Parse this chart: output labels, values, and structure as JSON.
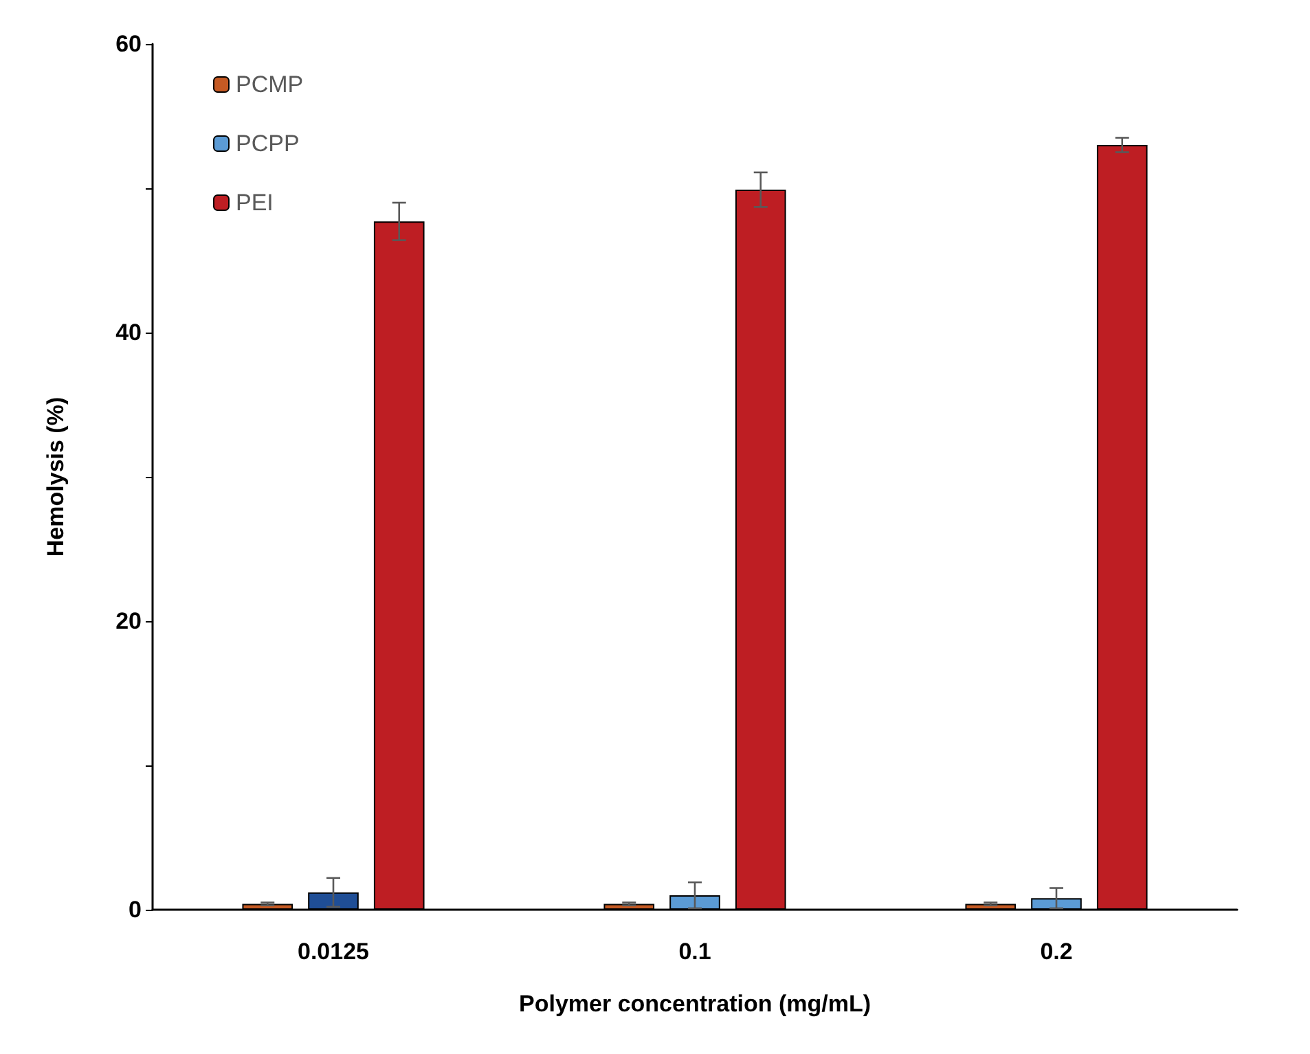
{
  "chart_data": {
    "type": "bar",
    "xlabel": "Polymer concentration (mg/mL)",
    "ylabel": "Hemolysis (%)",
    "categories": [
      "0.0125",
      "0.1",
      "0.2"
    ],
    "series": [
      {
        "name": "PCMP",
        "color": "#c55a24",
        "values": [
          0.4,
          0.4,
          0.4
        ],
        "errors": [
          0.1,
          0.1,
          0.1
        ]
      },
      {
        "name": "PCPP",
        "color": "#5b9bd5",
        "colors": [
          "#1f4e96",
          "#5b9bd5",
          "#5b9bd5"
        ],
        "values": [
          1.2,
          1.0,
          0.8
        ],
        "errors": [
          1.0,
          0.9,
          0.7
        ]
      },
      {
        "name": "PEI",
        "color": "#be1e23",
        "values": [
          47.7,
          49.9,
          53.0
        ],
        "errors": [
          1.3,
          1.2,
          0.5
        ]
      }
    ],
    "ylim": [
      0,
      60
    ],
    "yticks": [
      0,
      {
        "value": 10,
        "label": null
      },
      20,
      {
        "value": 30,
        "label": null
      },
      40,
      {
        "value": 50,
        "label": null
      },
      60
    ],
    "grid": false,
    "legend": "top left"
  }
}
